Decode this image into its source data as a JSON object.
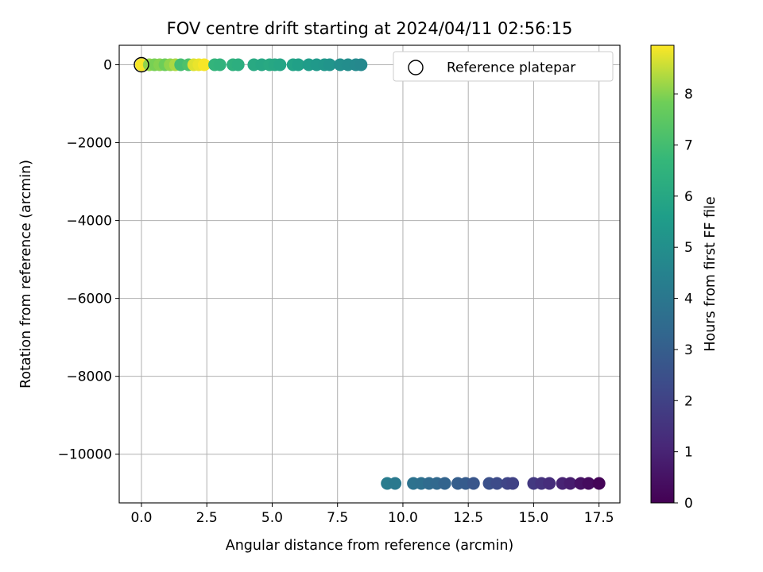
{
  "chart_data": {
    "type": "scatter",
    "title": "FOV centre drift starting at 2024/04/11 02:56:15",
    "xlabel": "Angular distance from reference (arcmin)",
    "ylabel": "Rotation from reference (arcmin)",
    "xlim": [
      -0.85,
      18.3
    ],
    "ylim": [
      -11250,
      500
    ],
    "xticks": [
      0.0,
      2.5,
      5.0,
      7.5,
      10.0,
      12.5,
      15.0,
      17.5
    ],
    "xtick_labels": [
      "0.0",
      "2.5",
      "5.0",
      "7.5",
      "10.0",
      "12.5",
      "15.0",
      "17.5"
    ],
    "yticks": [
      0,
      -2000,
      -4000,
      -6000,
      -8000,
      -10000
    ],
    "ytick_labels": [
      "0",
      "−2000",
      "−4000",
      "−6000",
      "−8000",
      "−10000"
    ],
    "grid": true,
    "legend": {
      "label": "Reference platepar",
      "position": "top-right",
      "marker": "open-circle"
    },
    "reference_point": {
      "x": 0.0,
      "y": 0
    },
    "colorbar": {
      "label": "Hours from first FF file",
      "range": [
        0,
        8.95
      ],
      "ticks": [
        0,
        1,
        2,
        3,
        4,
        5,
        6,
        7,
        8
      ],
      "colormap": "viridis"
    },
    "points": [
      {
        "x": 0.0,
        "y": 0,
        "c": 8.9
      },
      {
        "x": 0.3,
        "y": 0,
        "c": 8.1
      },
      {
        "x": 0.5,
        "y": 0,
        "c": 7.9
      },
      {
        "x": 0.7,
        "y": 0,
        "c": 8.0
      },
      {
        "x": 0.9,
        "y": 0,
        "c": 7.8
      },
      {
        "x": 1.1,
        "y": 0,
        "c": 8.1
      },
      {
        "x": 1.3,
        "y": 0,
        "c": 8.3
      },
      {
        "x": 1.5,
        "y": 0,
        "c": 7.0
      },
      {
        "x": 1.8,
        "y": 0,
        "c": 7.2
      },
      {
        "x": 2.0,
        "y": 0,
        "c": 8.7
      },
      {
        "x": 2.2,
        "y": 0,
        "c": 8.8
      },
      {
        "x": 2.4,
        "y": 0,
        "c": 8.9
      },
      {
        "x": 2.8,
        "y": 0,
        "c": 6.6
      },
      {
        "x": 3.0,
        "y": 0,
        "c": 6.5
      },
      {
        "x": 3.5,
        "y": 0,
        "c": 6.4
      },
      {
        "x": 3.7,
        "y": 0,
        "c": 6.3
      },
      {
        "x": 4.3,
        "y": 0,
        "c": 6.1
      },
      {
        "x": 4.6,
        "y": 0,
        "c": 6.0
      },
      {
        "x": 4.9,
        "y": 0,
        "c": 6.1
      },
      {
        "x": 5.1,
        "y": 0,
        "c": 6.0
      },
      {
        "x": 5.3,
        "y": 0,
        "c": 5.9
      },
      {
        "x": 5.8,
        "y": 0,
        "c": 5.8
      },
      {
        "x": 6.0,
        "y": 0,
        "c": 5.7
      },
      {
        "x": 6.4,
        "y": 0,
        "c": 5.5
      },
      {
        "x": 6.7,
        "y": 0,
        "c": 5.4
      },
      {
        "x": 7.0,
        "y": 0,
        "c": 5.3
      },
      {
        "x": 7.2,
        "y": 0,
        "c": 5.2
      },
      {
        "x": 7.6,
        "y": 0,
        "c": 5.0
      },
      {
        "x": 7.9,
        "y": 0,
        "c": 4.9
      },
      {
        "x": 8.2,
        "y": 0,
        "c": 4.8
      },
      {
        "x": 8.4,
        "y": 0,
        "c": 4.7
      },
      {
        "x": 9.4,
        "y": -10750,
        "c": 4.2
      },
      {
        "x": 9.7,
        "y": -10750,
        "c": 4.1
      },
      {
        "x": 10.4,
        "y": -10750,
        "c": 3.8
      },
      {
        "x": 10.7,
        "y": -10750,
        "c": 3.7
      },
      {
        "x": 11.0,
        "y": -10750,
        "c": 3.5
      },
      {
        "x": 11.3,
        "y": -10750,
        "c": 3.4
      },
      {
        "x": 11.6,
        "y": -10750,
        "c": 3.2
      },
      {
        "x": 12.1,
        "y": -10750,
        "c": 3.0
      },
      {
        "x": 12.4,
        "y": -10750,
        "c": 2.9
      },
      {
        "x": 12.7,
        "y": -10750,
        "c": 2.7
      },
      {
        "x": 13.3,
        "y": -10750,
        "c": 2.5
      },
      {
        "x": 13.6,
        "y": -10750,
        "c": 2.3
      },
      {
        "x": 14.0,
        "y": -10750,
        "c": 2.1
      },
      {
        "x": 14.2,
        "y": -10750,
        "c": 2.0
      },
      {
        "x": 15.0,
        "y": -10750,
        "c": 1.7
      },
      {
        "x": 15.3,
        "y": -10750,
        "c": 1.5
      },
      {
        "x": 15.6,
        "y": -10750,
        "c": 1.3
      },
      {
        "x": 16.1,
        "y": -10750,
        "c": 1.0
      },
      {
        "x": 16.4,
        "y": -10750,
        "c": 0.8
      },
      {
        "x": 16.8,
        "y": -10750,
        "c": 0.5
      },
      {
        "x": 17.1,
        "y": -10750,
        "c": 0.3
      },
      {
        "x": 17.5,
        "y": -10750,
        "c": 0.1
      }
    ]
  }
}
